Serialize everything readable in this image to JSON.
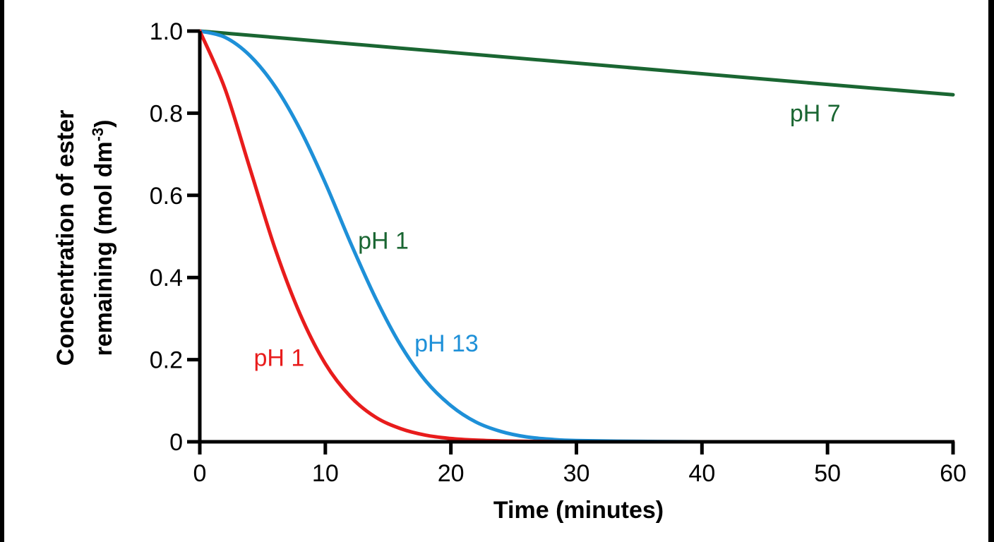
{
  "chart_data": {
    "type": "line",
    "title": "",
    "xlabel": "Time (minutes)",
    "ylabel_line1": "Concentration of ester",
    "ylabel_line2": "remaining (mol dm",
    "ylabel_sup": "-3",
    "ylabel_close": ")",
    "xlim": [
      0,
      60
    ],
    "ylim": [
      0,
      1.0
    ],
    "x_ticks": [
      0,
      10,
      20,
      30,
      40,
      50,
      60
    ],
    "x_tick_labels": [
      "0",
      "10",
      "20",
      "30",
      "40",
      "50",
      "60"
    ],
    "y_ticks": [
      0,
      0.2,
      0.4,
      0.6,
      0.8,
      1.0
    ],
    "y_tick_labels": [
      "0",
      "0.2",
      "0.4",
      "0.6",
      "0.8",
      "1.0"
    ],
    "grid": false,
    "series": [
      {
        "name": "pH 7",
        "color": "#1a6632",
        "x": [
          0,
          10,
          20,
          30,
          40,
          50,
          60
        ],
        "y": [
          1.0,
          0.974,
          0.948,
          0.922,
          0.896,
          0.87,
          0.845
        ]
      },
      {
        "name": "pH 13",
        "color": "#1e90d8",
        "x": [
          0,
          2,
          4,
          6,
          8,
          10,
          12,
          14,
          16,
          18,
          20,
          22,
          24,
          26,
          28,
          30,
          35,
          40,
          50,
          60
        ],
        "y": [
          1.0,
          0.985,
          0.94,
          0.865,
          0.76,
          0.63,
          0.485,
          0.35,
          0.235,
          0.148,
          0.088,
          0.048,
          0.025,
          0.012,
          0.006,
          0.003,
          0.001,
          0.0,
          0.0,
          0.0
        ]
      },
      {
        "name": "pH 1",
        "color": "#e81c1c",
        "x": [
          0,
          2,
          4,
          6,
          8,
          10,
          12,
          14,
          16,
          18,
          20,
          22,
          24,
          26,
          28,
          30,
          35,
          40,
          50,
          60
        ],
        "y": [
          1.0,
          0.86,
          0.665,
          0.47,
          0.31,
          0.19,
          0.11,
          0.06,
          0.032,
          0.016,
          0.008,
          0.004,
          0.002,
          0.001,
          0.0005,
          0.0,
          0.0,
          0.0,
          0.0,
          0.0
        ]
      }
    ],
    "annotations": [
      {
        "text": "pH 7",
        "x": 47,
        "y": 0.78,
        "color": "#1a6632"
      },
      {
        "text": "pH 1",
        "x": 12.6,
        "y": 0.47,
        "color": "#1a6632"
      },
      {
        "text": "pH 13",
        "x": 17.1,
        "y": 0.22,
        "color": "#1e90d8"
      },
      {
        "text": "pH 1",
        "x": 4.3,
        "y": 0.185,
        "color": "#e81c1c"
      }
    ]
  }
}
